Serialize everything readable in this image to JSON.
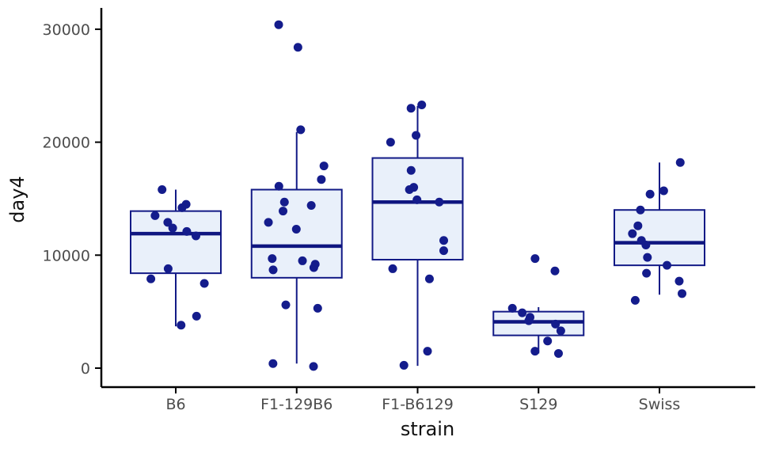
{
  "figure": {
    "background": "#ffffff"
  },
  "chart_data": {
    "type": "boxplot",
    "title": "",
    "xlabel": "strain",
    "ylabel": "day4",
    "categories": [
      "B6",
      "F1-129B6",
      "F1-B6129",
      "S129",
      "Swiss"
    ],
    "yticks": [
      0,
      10000,
      20000,
      30000
    ],
    "ytick_labels": [
      "0",
      "10000",
      "20000",
      "30000"
    ],
    "ylim": [
      0,
      30500
    ],
    "grid": false,
    "legend": null,
    "style": {
      "box_fill": "#e9f0fa",
      "box_stroke": "#121a86",
      "median_color": "#0f1680",
      "point_color": "#141c8c",
      "axis_color": "#000000",
      "tick_label_color": "#4d4d4d",
      "axis_title_color": "#111111"
    },
    "series": [
      {
        "name": "B6",
        "stats": {
          "whisker_low": 3700,
          "q1": 8400,
          "median": 11900,
          "q3": 13900,
          "whisker_high": 15800
        },
        "points": [
          15800,
          14500,
          14200,
          13500,
          12900,
          12400,
          12100,
          11700,
          8800,
          7900,
          7500,
          4600,
          3800
        ]
      },
      {
        "name": "F1-129B6",
        "stats": {
          "whisker_low": 400,
          "q1": 8000,
          "median": 10800,
          "q3": 15800,
          "whisker_high": 20900
        },
        "points": [
          30400,
          28400,
          21100,
          17900,
          16700,
          16100,
          14700,
          14400,
          13900,
          12900,
          12300,
          9700,
          9500,
          9200,
          8900,
          8700,
          5600,
          5300,
          400,
          150
        ]
      },
      {
        "name": "F1-B6129",
        "stats": {
          "whisker_low": 200,
          "q1": 9600,
          "median": 14700,
          "q3": 18600,
          "whisker_high": 23200
        },
        "points": [
          23300,
          23000,
          20600,
          20000,
          17500,
          16000,
          15800,
          14900,
          14700,
          11300,
          10400,
          8800,
          7900,
          1500,
          250
        ]
      },
      {
        "name": "S129",
        "stats": {
          "whisker_low": 1300,
          "q1": 2900,
          "median": 4100,
          "q3": 5000,
          "whisker_high": 5400
        },
        "points": [
          9700,
          8600,
          5300,
          4900,
          4500,
          4200,
          3900,
          3300,
          2400,
          1500,
          1300
        ]
      },
      {
        "name": "Swiss",
        "stats": {
          "whisker_low": 6500,
          "q1": 9100,
          "median": 11100,
          "q3": 14000,
          "whisker_high": 18200
        },
        "points": [
          18200,
          15700,
          15400,
          14000,
          12600,
          11900,
          11300,
          10900,
          9800,
          9100,
          8400,
          7700,
          6600,
          6000
        ]
      }
    ]
  }
}
